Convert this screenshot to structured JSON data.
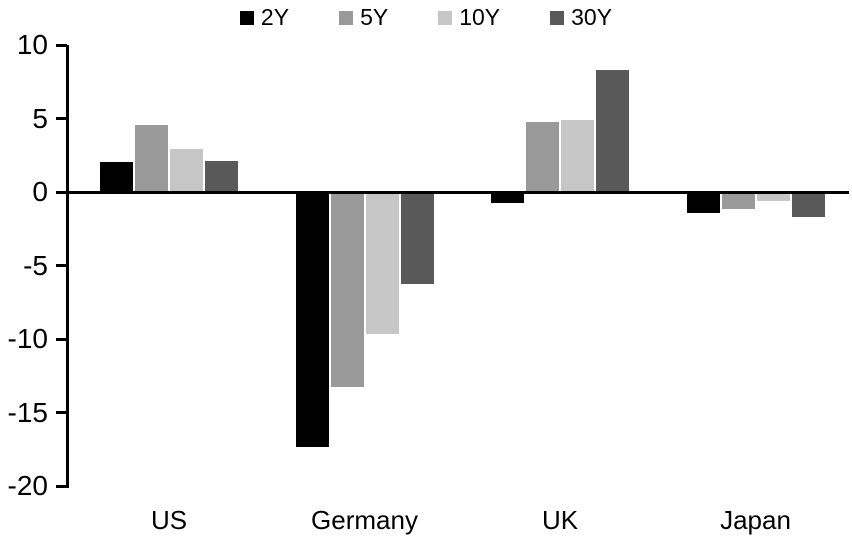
{
  "chart_data": {
    "type": "bar",
    "title": "",
    "xlabel": "",
    "ylabel": "",
    "categories": [
      "US",
      "Germany",
      "UK",
      "Japan"
    ],
    "series": [
      {
        "name": "2Y",
        "color": "#000000",
        "values": [
          2.1,
          -17.4,
          -0.8,
          -1.5
        ]
      },
      {
        "name": "5Y",
        "color": "#999999",
        "values": [
          4.6,
          -13.3,
          4.8,
          -1.2
        ]
      },
      {
        "name": "10Y",
        "color": "#c6c6c6",
        "values": [
          3.0,
          -9.7,
          5.0,
          -0.7
        ]
      },
      {
        "name": "30Y",
        "color": "#595959",
        "values": [
          2.2,
          -6.3,
          8.4,
          -1.8
        ]
      }
    ],
    "ylim": [
      -20,
      10
    ],
    "y_ticks": [
      10,
      5,
      0,
      -5,
      -10,
      -15,
      -20
    ],
    "legend_position": "top",
    "grid": false,
    "axis_color": "#000000",
    "background_color": "#ffffff"
  }
}
